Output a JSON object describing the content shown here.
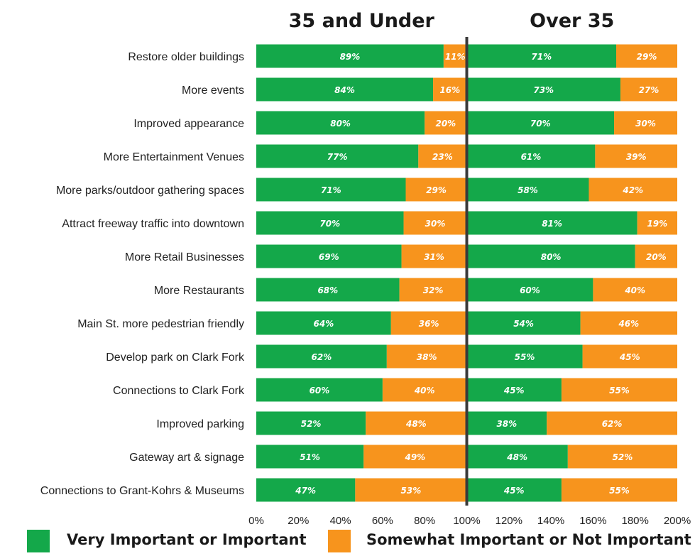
{
  "colors": {
    "primary": "#14a84a",
    "secondary": "#f7941d",
    "divider": "#3a3a3a",
    "bar_text": "#ffffff",
    "label_text": "#222222"
  },
  "legend": {
    "primary_label": "Very Important or Important",
    "secondary_label": "Somewhat Important or Not Important"
  },
  "chart_data": {
    "type": "bar",
    "orientation": "horizontal",
    "stacked": true,
    "groups": [
      "35 and Under",
      "Over 35"
    ],
    "categories": [
      "Restore older buildings",
      "More events",
      "Improved appearance",
      "More Entertainment Venues",
      "More parks/outdoor gathering spaces",
      "Attract freeway traffic into downtown",
      "More Retail Businesses",
      "More Restaurants",
      "Main St. more pedestrian friendly",
      "Develop park on Clark Fork",
      "Connections to Clark Fork",
      "Improved parking",
      "Gateway art & signage",
      "Connections to Grant-Kohrs & Museums"
    ],
    "series": [
      {
        "name": "Very Important or Important",
        "group": "35 and Under",
        "values": [
          89,
          84,
          80,
          77,
          71,
          70,
          69,
          68,
          64,
          62,
          60,
          52,
          51,
          47
        ]
      },
      {
        "name": "Somewhat Important or Not Important",
        "group": "35 and Under",
        "values": [
          11,
          16,
          20,
          23,
          29,
          30,
          31,
          32,
          36,
          38,
          40,
          48,
          49,
          53
        ]
      },
      {
        "name": "Very Important or Important",
        "group": "Over 35",
        "values": [
          71,
          73,
          70,
          61,
          58,
          81,
          80,
          60,
          54,
          55,
          45,
          38,
          48,
          45
        ]
      },
      {
        "name": "Somewhat Important or Not Important",
        "group": "Over 35",
        "values": [
          29,
          27,
          30,
          39,
          42,
          19,
          20,
          40,
          46,
          45,
          55,
          62,
          52,
          55
        ]
      }
    ],
    "x_ticks": [
      "0%",
      "20%",
      "40%",
      "60%",
      "80%",
      "100%",
      "120%",
      "140%",
      "160%",
      "180%",
      "200%"
    ],
    "xlim": [
      0,
      200
    ],
    "value_suffix": "%",
    "grid": false,
    "legend_position": "bottom"
  }
}
